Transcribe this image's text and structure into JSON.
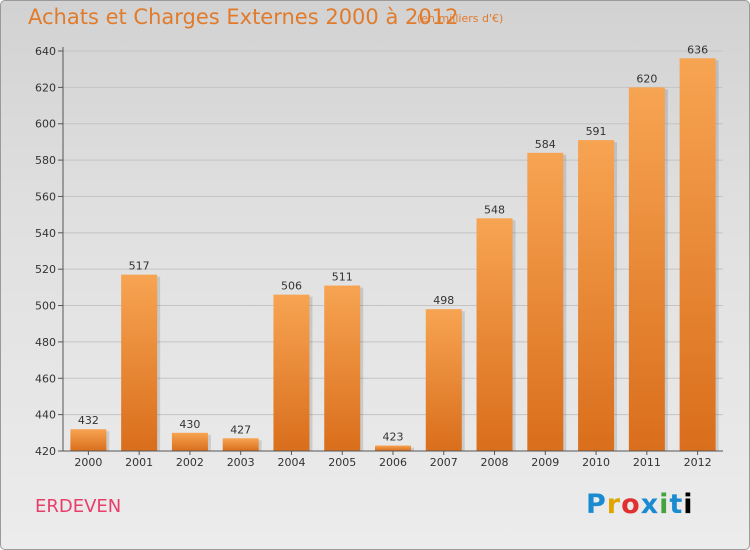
{
  "title": "Achats et Charges Externes 2000 à 2012",
  "unit_note": "(en milliers d'€)",
  "city": "ERDEVEN",
  "logo_letters": [
    "P",
    "r",
    "o",
    "x",
    "i",
    "t",
    "i"
  ],
  "colors": {
    "bar_light": "#f7a452",
    "bar_dark": "#d96e1c",
    "title": "#e17b2c",
    "city": "#e83e6b"
  },
  "chart_data": {
    "type": "bar",
    "title": "Achats et Charges Externes 2000 à 2012",
    "categories": [
      "2000",
      "2001",
      "2002",
      "2003",
      "2004",
      "2005",
      "2006",
      "2007",
      "2008",
      "2009",
      "2010",
      "2011",
      "2012"
    ],
    "values": [
      432,
      517,
      430,
      427,
      506,
      511,
      423,
      498,
      548,
      584,
      591,
      620,
      636
    ],
    "ylim": [
      420,
      640
    ],
    "yticks": [
      420,
      440,
      460,
      480,
      500,
      520,
      540,
      560,
      580,
      600,
      620,
      640
    ],
    "grid": true
  }
}
